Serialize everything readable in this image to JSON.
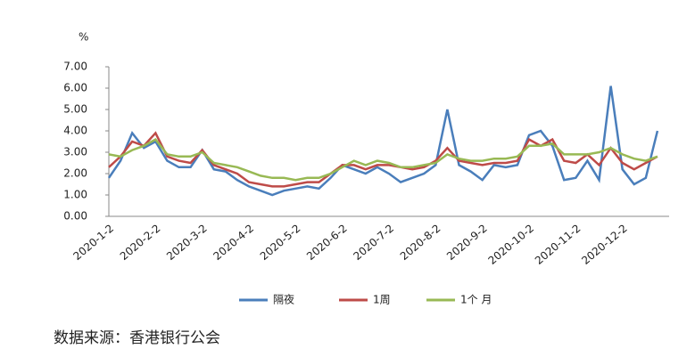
{
  "chart_data": {
    "type": "line",
    "y_label": "%",
    "categories": [
      "2020-1-2",
      null,
      null,
      null,
      "2020-2-2",
      null,
      null,
      null,
      "2020-3-2",
      null,
      null,
      null,
      "2020-4-2",
      null,
      null,
      null,
      "2020-5-2",
      null,
      null,
      null,
      "2020-6-2",
      null,
      null,
      null,
      "2020-7-2",
      null,
      null,
      null,
      "2020-8-2",
      null,
      null,
      null,
      "2020-9-2",
      null,
      null,
      null,
      "2020-10-2",
      null,
      null,
      null,
      "2020-11-2",
      null,
      null,
      null,
      "2020-12-2",
      null,
      null,
      null
    ],
    "series": [
      {
        "name": "隔夜",
        "color": "#4a7ebb",
        "values": [
          1.8,
          2.6,
          3.9,
          3.2,
          3.5,
          2.6,
          2.3,
          2.3,
          3.1,
          2.2,
          2.1,
          1.7,
          1.4,
          1.2,
          1.0,
          1.2,
          1.3,
          1.4,
          1.3,
          1.8,
          2.4,
          2.2,
          2.0,
          2.3,
          2.0,
          1.6,
          1.8,
          2.0,
          2.4,
          5.0,
          2.4,
          2.1,
          1.7,
          2.4,
          2.3,
          2.4,
          3.8,
          4.0,
          3.3,
          1.7,
          1.8,
          2.6,
          1.7,
          6.1,
          2.2,
          1.5,
          1.8,
          4.0
        ]
      },
      {
        "name": "1周",
        "color": "#be4b48",
        "values": [
          2.3,
          2.8,
          3.5,
          3.3,
          3.9,
          2.8,
          2.6,
          2.5,
          3.1,
          2.4,
          2.2,
          2.0,
          1.6,
          1.5,
          1.4,
          1.4,
          1.5,
          1.6,
          1.6,
          2.0,
          2.4,
          2.4,
          2.2,
          2.4,
          2.4,
          2.3,
          2.2,
          2.3,
          2.6,
          3.2,
          2.6,
          2.5,
          2.4,
          2.5,
          2.5,
          2.6,
          3.6,
          3.3,
          3.6,
          2.6,
          2.5,
          2.9,
          2.4,
          3.2,
          2.5,
          2.2,
          2.5,
          2.8
        ]
      },
      {
        "name": "1个 月",
        "color": "#98b954",
        "values": [
          2.9,
          2.8,
          3.1,
          3.3,
          3.6,
          2.9,
          2.8,
          2.8,
          3.0,
          2.5,
          2.4,
          2.3,
          2.1,
          1.9,
          1.8,
          1.8,
          1.7,
          1.8,
          1.8,
          2.0,
          2.3,
          2.6,
          2.4,
          2.6,
          2.5,
          2.3,
          2.3,
          2.4,
          2.5,
          2.9,
          2.7,
          2.6,
          2.6,
          2.7,
          2.7,
          2.8,
          3.3,
          3.3,
          3.4,
          2.9,
          2.9,
          2.9,
          3.0,
          3.2,
          2.9,
          2.7,
          2.6,
          2.8
        ]
      }
    ],
    "ylim": [
      0,
      7
    ],
    "yticks": [
      {
        "value": 0,
        "label": "0.00"
      },
      {
        "value": 1,
        "label": "1.00"
      },
      {
        "value": 2,
        "label": "2.00"
      },
      {
        "value": 3,
        "label": "3.00"
      },
      {
        "value": 4,
        "label": "4.00"
      },
      {
        "value": 5,
        "label": "5.00"
      },
      {
        "value": 6,
        "label": "6.00"
      },
      {
        "value": 7,
        "label": "7.00"
      }
    ],
    "source": "数据来源：香港银行公会"
  }
}
